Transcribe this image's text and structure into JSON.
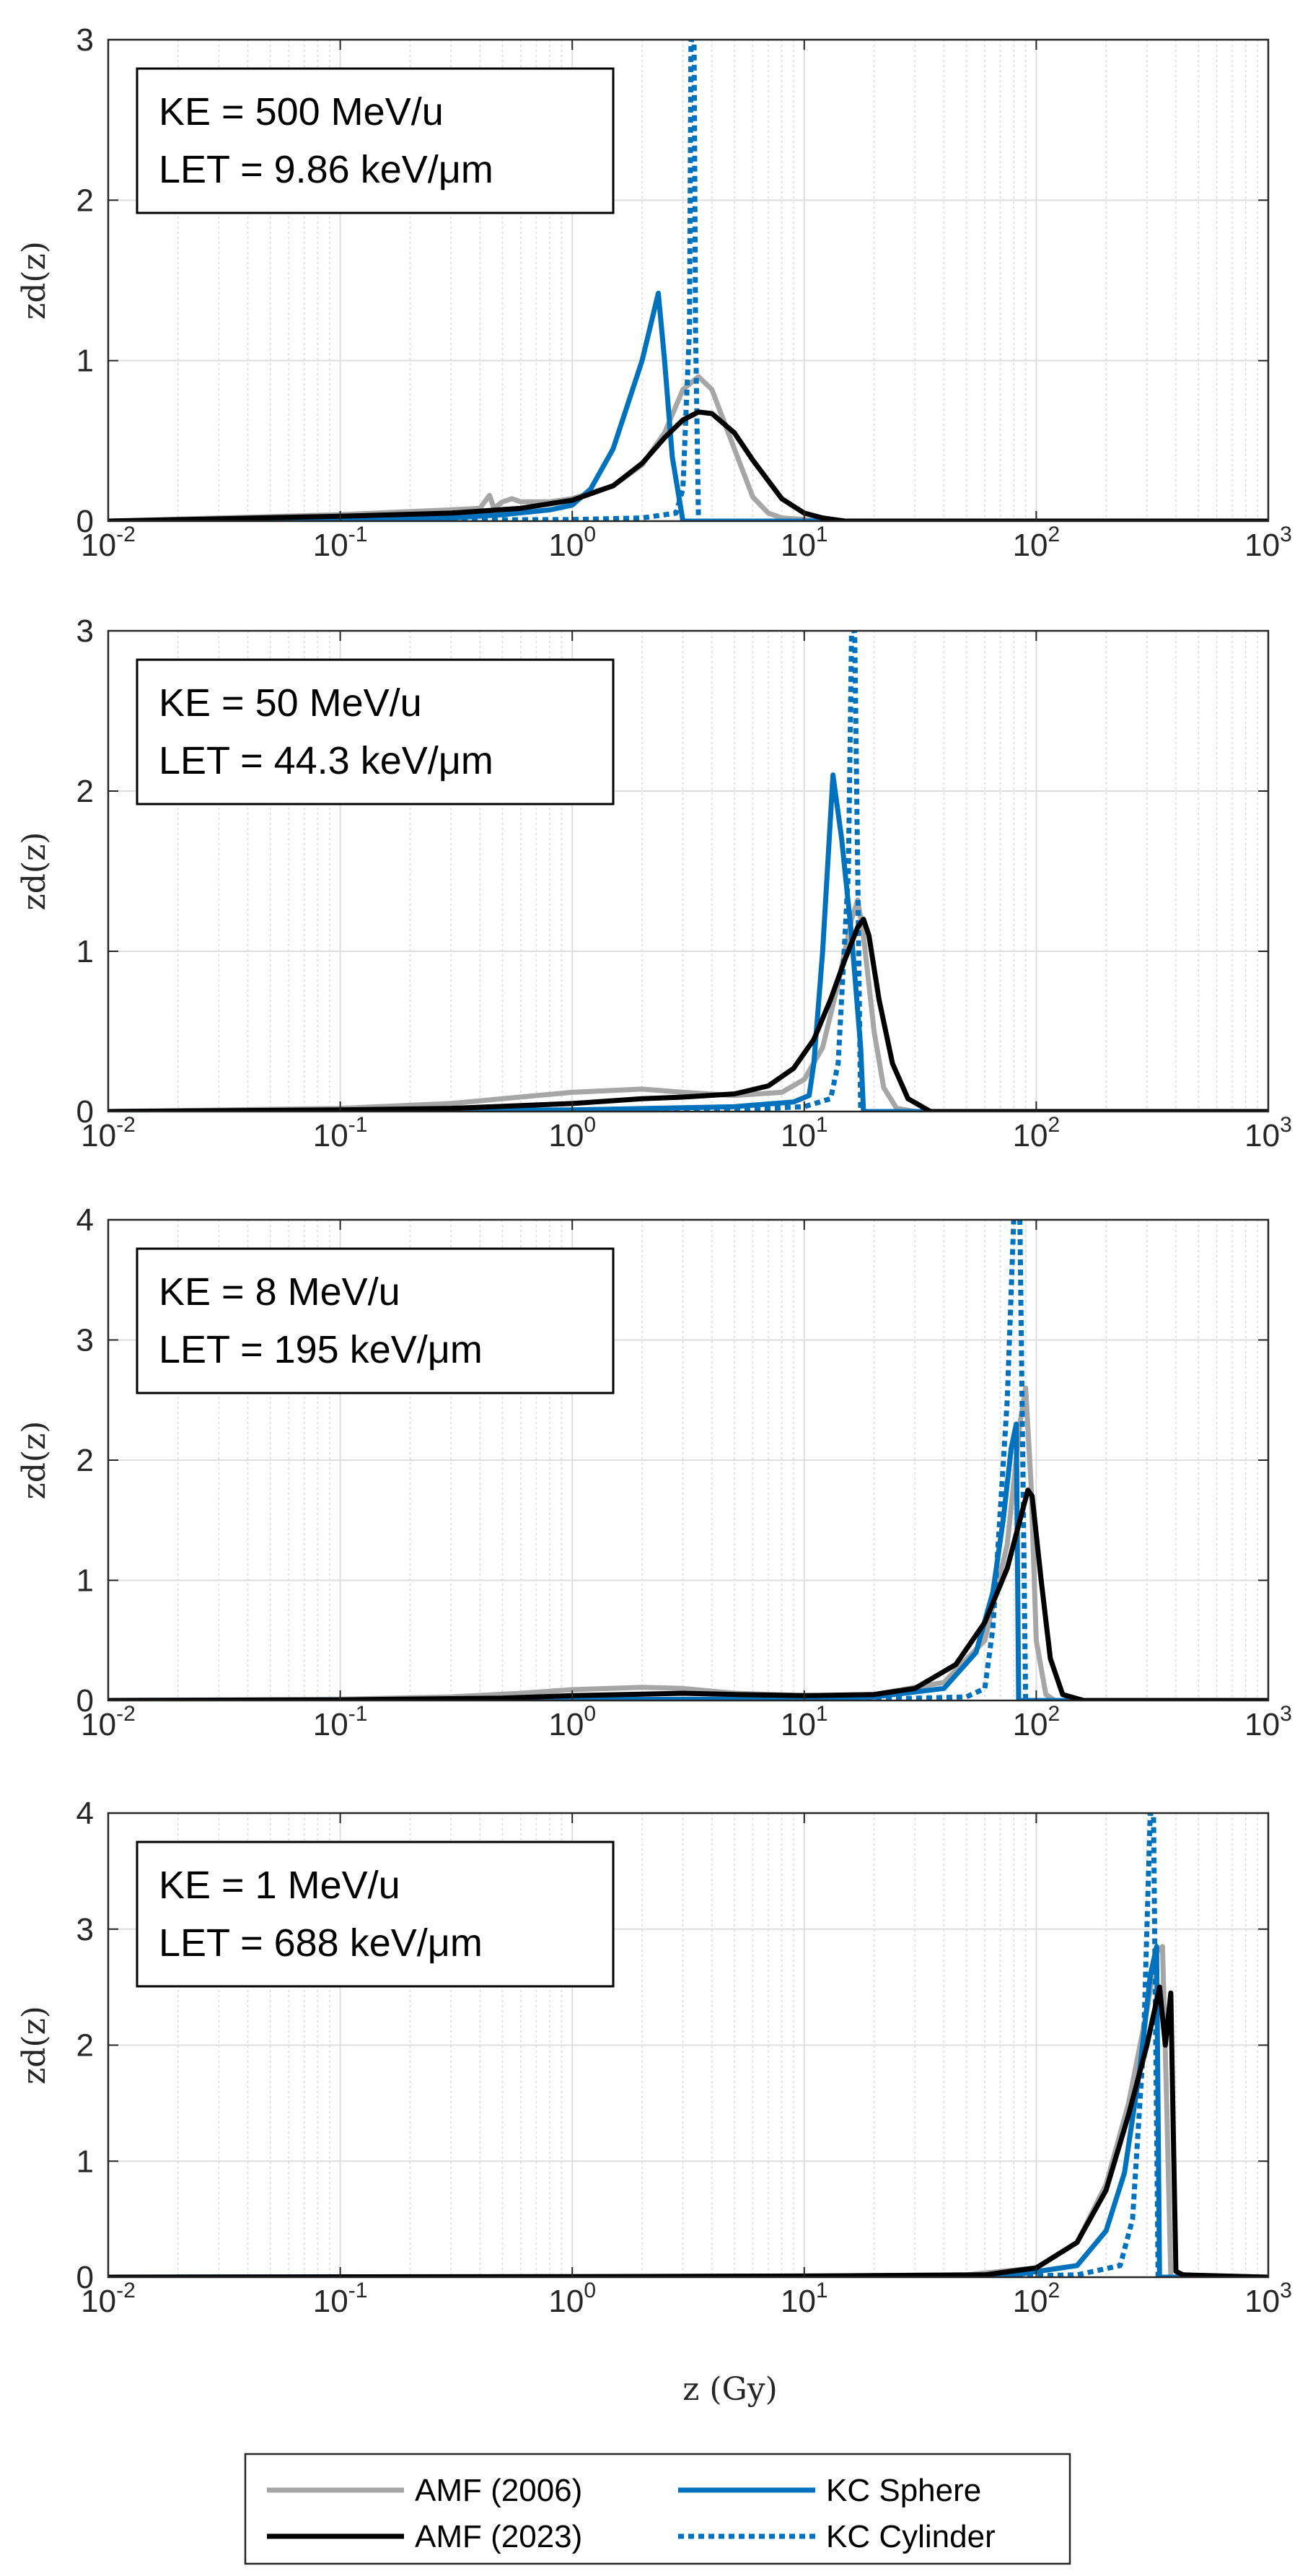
{
  "figure": {
    "xlabel": "z (Gy)",
    "legend": {
      "placement": "bottom-center",
      "entries": [
        {
          "label": "AMF (2006)",
          "color": "#a6a6a6",
          "dash": "solid"
        },
        {
          "label": "KC Sphere",
          "color": "#0072bd",
          "dash": "solid"
        },
        {
          "label": "AMF (2023)",
          "color": "#000000",
          "dash": "solid"
        },
        {
          "label": "KC Cylinder",
          "color": "#0072bd",
          "dash": "dotted"
        }
      ]
    }
  },
  "chart_data": [
    {
      "type": "line",
      "ylabel": "zd(z)",
      "xscale": "log",
      "xlim": [
        0.01,
        1000
      ],
      "ylim": [
        0,
        3
      ],
      "yticks": [
        0,
        1,
        2,
        3
      ],
      "annotation": [
        "KE = 500 MeV/u",
        "LET = 9.86 keV/μm"
      ],
      "series": [
        {
          "name": "AMF (2006)",
          "color": "#a6a6a6",
          "dash": "solid",
          "x": [
            0.01,
            0.03,
            0.1,
            0.2,
            0.3,
            0.4,
            0.44,
            0.46,
            0.5,
            0.55,
            0.6,
            0.8,
            1.0,
            1.5,
            2.0,
            2.5,
            3.0,
            3.5,
            4.0,
            5.0,
            6.0,
            7.0,
            8.0,
            10.0,
            12.0,
            20.0
          ],
          "y": [
            0.0,
            0.02,
            0.04,
            0.06,
            0.07,
            0.08,
            0.16,
            0.08,
            0.12,
            0.14,
            0.12,
            0.12,
            0.14,
            0.22,
            0.35,
            0.55,
            0.82,
            0.9,
            0.82,
            0.45,
            0.15,
            0.05,
            0.02,
            0.01,
            0.0,
            0.0
          ]
        },
        {
          "name": "AMF (2023)",
          "color": "#000000",
          "dash": "solid",
          "x": [
            0.01,
            0.1,
            0.3,
            0.6,
            1.0,
            1.5,
            2.0,
            2.5,
            3.0,
            3.5,
            4.0,
            5.0,
            6.0,
            8.0,
            10.0,
            12.0,
            15.0,
            20.0,
            1000.0
          ],
          "y": [
            0.0,
            0.03,
            0.05,
            0.08,
            0.13,
            0.22,
            0.36,
            0.52,
            0.63,
            0.68,
            0.67,
            0.55,
            0.38,
            0.14,
            0.05,
            0.02,
            0.0,
            0.0,
            0.0
          ]
        },
        {
          "name": "KC Sphere",
          "color": "#0072bd",
          "dash": "solid",
          "x": [
            0.01,
            0.1,
            0.3,
            0.5,
            0.8,
            1.0,
            1.2,
            1.5,
            2.0,
            2.35,
            2.5,
            2.7,
            3.0,
            1000.0
          ],
          "y": [
            0.0,
            0.01,
            0.02,
            0.04,
            0.07,
            0.1,
            0.2,
            0.45,
            1.0,
            1.42,
            1.0,
            0.4,
            0.0,
            0.0
          ]
        },
        {
          "name": "KC Cylinder",
          "color": "#0072bd",
          "dash": "dotted",
          "x": [
            0.01,
            1.0,
            2.0,
            2.8,
            3.0,
            3.2,
            3.25,
            3.35,
            3.4,
            3.5,
            1000.0
          ],
          "y": [
            0.0,
            0.01,
            0.02,
            0.05,
            0.2,
            1.2,
            3.0,
            3.0,
            1.2,
            0.0,
            0.0
          ]
        }
      ]
    },
    {
      "type": "line",
      "ylabel": "zd(z)",
      "xscale": "log",
      "xlim": [
        0.01,
        1000
      ],
      "ylim": [
        0,
        3
      ],
      "yticks": [
        0,
        1,
        2,
        3
      ],
      "annotation": [
        "KE = 50 MeV/u",
        "LET = 44.3 keV/μm"
      ],
      "series": [
        {
          "name": "AMF (2006)",
          "color": "#a6a6a6",
          "dash": "solid",
          "x": [
            0.01,
            0.1,
            0.3,
            0.5,
            1.0,
            2.0,
            3.0,
            5.0,
            8.0,
            10.0,
            12.0,
            14.0,
            16.0,
            17.0,
            18.0,
            20.0,
            22.0,
            25.0,
            30.0
          ],
          "y": [
            0.0,
            0.02,
            0.05,
            0.08,
            0.12,
            0.14,
            0.12,
            0.1,
            0.12,
            0.2,
            0.4,
            0.8,
            1.2,
            1.32,
            1.1,
            0.5,
            0.15,
            0.02,
            0.0
          ]
        },
        {
          "name": "AMF (2023)",
          "color": "#000000",
          "dash": "solid",
          "x": [
            0.01,
            0.1,
            0.3,
            1.0,
            2.0,
            3.0,
            5.0,
            7.0,
            9.0,
            11.0,
            13.0,
            15.0,
            17.0,
            18.0,
            19.0,
            21.0,
            24.0,
            28.0,
            35.0,
            1000.0
          ],
          "y": [
            0.0,
            0.01,
            0.02,
            0.05,
            0.08,
            0.09,
            0.11,
            0.16,
            0.27,
            0.45,
            0.7,
            0.95,
            1.15,
            1.2,
            1.1,
            0.7,
            0.3,
            0.08,
            0.0,
            0.0
          ]
        },
        {
          "name": "KC Sphere",
          "color": "#0072bd",
          "dash": "solid",
          "x": [
            0.01,
            1.0,
            5.0,
            9.0,
            10.5,
            11.0,
            12.0,
            13.3,
            14.5,
            16.0,
            17.5,
            18.0,
            1000.0
          ],
          "y": [
            0.0,
            0.01,
            0.03,
            0.06,
            0.1,
            0.3,
            1.0,
            2.1,
            1.7,
            1.1,
            0.4,
            0.0,
            0.0
          ]
        },
        {
          "name": "KC Cylinder",
          "color": "#0072bd",
          "dash": "dotted",
          "x": [
            0.01,
            5.0,
            10.0,
            13.0,
            14.0,
            15.5,
            16.0,
            16.5,
            17.0,
            17.5,
            1000.0
          ],
          "y": [
            0.0,
            0.01,
            0.03,
            0.08,
            0.3,
            1.5,
            3.0,
            3.0,
            1.5,
            0.0,
            0.0
          ]
        }
      ]
    },
    {
      "type": "line",
      "ylabel": "zd(z)",
      "xscale": "log",
      "xlim": [
        0.01,
        1000
      ],
      "ylim": [
        0,
        4
      ],
      "yticks": [
        0,
        1,
        2,
        3,
        4
      ],
      "annotation": [
        "KE = 8 MeV/u",
        "LET = 195 keV/μm"
      ],
      "series": [
        {
          "name": "AMF (2006)",
          "color": "#a6a6a6",
          "dash": "solid",
          "x": [
            0.01,
            0.1,
            0.3,
            0.6,
            1.0,
            2.0,
            3.0,
            5.0,
            10.0,
            20.0,
            40.0,
            60.0,
            75.0,
            85.0,
            90.0,
            95.0,
            100.0,
            110.0,
            120.0
          ],
          "y": [
            0.0,
            0.01,
            0.03,
            0.06,
            0.09,
            0.11,
            0.1,
            0.06,
            0.04,
            0.05,
            0.15,
            0.5,
            1.3,
            2.3,
            2.6,
            1.8,
            0.5,
            0.05,
            0.0
          ]
        },
        {
          "name": "AMF (2023)",
          "color": "#000000",
          "dash": "solid",
          "x": [
            0.01,
            0.1,
            0.5,
            1.0,
            3.0,
            5.0,
            10.0,
            20.0,
            30.0,
            45.0,
            60.0,
            75.0,
            85.0,
            92.0,
            96.0,
            105.0,
            115.0,
            130.0,
            160.0,
            1000.0
          ],
          "y": [
            0.0,
            0.005,
            0.02,
            0.04,
            0.06,
            0.05,
            0.04,
            0.05,
            0.1,
            0.3,
            0.65,
            1.1,
            1.5,
            1.75,
            1.7,
            1.0,
            0.35,
            0.05,
            0.0,
            0.0
          ]
        },
        {
          "name": "KC Sphere",
          "color": "#0072bd",
          "dash": "solid",
          "x": [
            0.01,
            5.0,
            20.0,
            40.0,
            55.0,
            65.0,
            72.0,
            78.0,
            82.0,
            84.0,
            1000.0
          ],
          "y": [
            0.0,
            0.01,
            0.03,
            0.1,
            0.4,
            0.9,
            1.5,
            2.1,
            2.3,
            0.0,
            0.0
          ]
        },
        {
          "name": "KC Cylinder",
          "color": "#0072bd",
          "dash": "dotted",
          "x": [
            0.01,
            20.0,
            50.0,
            60.0,
            65.0,
            75.0,
            80.0,
            85.0,
            90.0,
            1000.0
          ],
          "y": [
            0.0,
            0.01,
            0.03,
            0.1,
            0.6,
            2.5,
            4.0,
            4.0,
            0.0,
            0.0
          ]
        }
      ]
    },
    {
      "type": "line",
      "ylabel": "zd(z)",
      "xscale": "log",
      "xlim": [
        0.01,
        1000
      ],
      "ylim": [
        0,
        4
      ],
      "yticks": [
        0,
        1,
        2,
        3,
        4
      ],
      "xticks": [
        "10^-2",
        "10^-1",
        "10^0",
        "10^1",
        "10^2",
        "10^3"
      ],
      "annotation": [
        "KE = 1 MeV/u",
        "LET = 688 keV/μm"
      ],
      "series": [
        {
          "name": "AMF (2006)",
          "color": "#a6a6a6",
          "dash": "solid",
          "x": [
            0.01,
            1.0,
            10.0,
            50.0,
            100.0,
            150.0,
            200.0,
            250.0,
            300.0,
            330.0,
            350.0,
            365.0,
            380.0,
            1000.0
          ],
          "y": [
            0.0,
            0.005,
            0.01,
            0.02,
            0.08,
            0.3,
            0.8,
            1.5,
            2.3,
            2.8,
            2.85,
            1.5,
            0.0,
            0.0
          ]
        },
        {
          "name": "AMF (2023)",
          "color": "#000000",
          "dash": "solid",
          "x": [
            0.01,
            1.0,
            10.0,
            60.0,
            100.0,
            150.0,
            200.0,
            250.0,
            300.0,
            340.0,
            360.0,
            380.0,
            390.0,
            400.0,
            430.0,
            1000.0
          ],
          "y": [
            0.0,
            0.005,
            0.01,
            0.02,
            0.08,
            0.3,
            0.75,
            1.4,
            2.0,
            2.5,
            2.0,
            2.45,
            1.2,
            0.05,
            0.02,
            0.0
          ]
        },
        {
          "name": "KC Sphere",
          "color": "#0072bd",
          "dash": "solid",
          "x": [
            0.01,
            10.0,
            80.0,
            150.0,
            200.0,
            240.0,
            280.0,
            310.0,
            330.0,
            340.0,
            1000.0
          ],
          "y": [
            0.0,
            0.005,
            0.02,
            0.1,
            0.4,
            0.9,
            1.8,
            2.6,
            2.85,
            0.0,
            0.0
          ]
        },
        {
          "name": "KC Cylinder",
          "color": "#0072bd",
          "dash": "dotted",
          "x": [
            0.01,
            50.0,
            150.0,
            230.0,
            260.0,
            290.0,
            310.0,
            320.0,
            335.0,
            1000.0
          ],
          "y": [
            0.0,
            0.005,
            0.02,
            0.1,
            0.5,
            2.0,
            4.0,
            4.0,
            0.0,
            0.0
          ]
        }
      ]
    }
  ]
}
